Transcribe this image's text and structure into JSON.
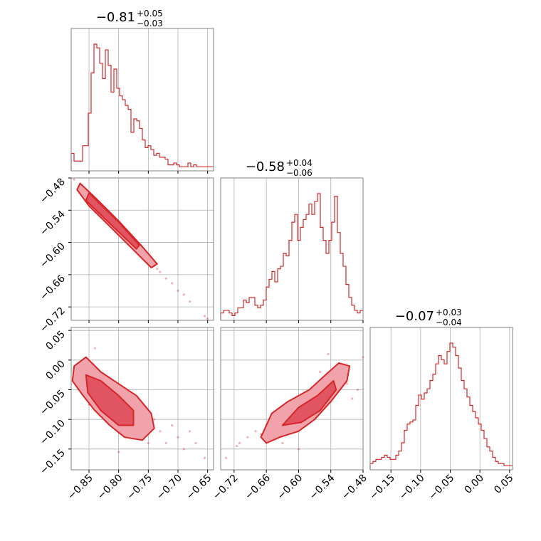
{
  "colors": {
    "line": "#d62728",
    "fill_dark": "#e05561",
    "fill_light": "#f0a3ab",
    "grid": "#b0b0b0",
    "frame": "#808080"
  },
  "chart_data": {
    "type": "corner",
    "parameters": [
      {
        "title_value": "−0.81",
        "err_plus": "+0.05",
        "err_minus": "−0.03",
        "median": -0.81,
        "plus": 0.05,
        "minus": 0.03,
        "range": [
          -0.88,
          -0.64
        ]
      },
      {
        "title_value": "−0.58",
        "err_plus": "+0.04",
        "err_minus": "−0.06",
        "median": -0.58,
        "plus": 0.04,
        "minus": 0.06,
        "range": [
          -0.745,
          -0.48
        ]
      },
      {
        "title_value": "−0.07",
        "err_plus": "+0.03",
        "err_minus": "−0.04",
        "median": -0.07,
        "plus": 0.03,
        "minus": 0.04,
        "range": [
          -0.185,
          0.055
        ]
      }
    ],
    "ticks": {
      "p0": [
        {
          "v": -0.85,
          "label": "−0.85"
        },
        {
          "v": -0.8,
          "label": "−0.80"
        },
        {
          "v": -0.75,
          "label": "−0.75"
        },
        {
          "v": -0.7,
          "label": "−0.70"
        },
        {
          "v": -0.65,
          "label": "−0.65"
        }
      ],
      "p1": [
        {
          "v": -0.72,
          "label": "−0.72"
        },
        {
          "v": -0.66,
          "label": "−0.66"
        },
        {
          "v": -0.6,
          "label": "−0.60"
        },
        {
          "v": -0.54,
          "label": "−0.54"
        },
        {
          "v": -0.48,
          "label": "−0.48"
        }
      ],
      "p2": [
        {
          "v": -0.15,
          "label": "−0.15"
        },
        {
          "v": -0.1,
          "label": "−0.10"
        },
        {
          "v": -0.05,
          "label": "−0.05"
        },
        {
          "v": 0.0,
          "label": "0.00"
        },
        {
          "v": 0.05,
          "label": "0.05"
        }
      ]
    },
    "histograms": {
      "p0": [
        8,
        4,
        4,
        4,
        12,
        12,
        29,
        50,
        65,
        63,
        55,
        47,
        62,
        54,
        40,
        52,
        42,
        38,
        36,
        33,
        31,
        19,
        26,
        25,
        21,
        15,
        11,
        12,
        10,
        7,
        8,
        6,
        6,
        5,
        2,
        2,
        3,
        2,
        1,
        1,
        1,
        3,
        1,
        2,
        1,
        1,
        1,
        1,
        1,
        1
      ],
      "p1": [
        2,
        3,
        3,
        2,
        1,
        2,
        4,
        4,
        7,
        6,
        8,
        8,
        5,
        4,
        5,
        7,
        12,
        15,
        18,
        14,
        19,
        20,
        25,
        24,
        30,
        37,
        40,
        30,
        35,
        38,
        40,
        44,
        40,
        45,
        48,
        35,
        30,
        25,
        30,
        37,
        47,
        33,
        25,
        20,
        13,
        8,
        5,
        3,
        2,
        3
      ],
      "p2": [
        2,
        3,
        4,
        4,
        5,
        6,
        5,
        4,
        4,
        6,
        8,
        12,
        18,
        21,
        22,
        23,
        30,
        35,
        33,
        36,
        38,
        42,
        45,
        50,
        54,
        52,
        50,
        56,
        60,
        58,
        54,
        48,
        42,
        38,
        34,
        30,
        27,
        24,
        21,
        18,
        14,
        10,
        8,
        5,
        3,
        2,
        2,
        1,
        1,
        1
      ]
    },
    "pairs": [
      {
        "x": "p0",
        "y": "p1",
        "samples": [
          [
            -0.875,
            -0.483
          ],
          [
            -0.86,
            -0.497
          ],
          [
            -0.855,
            -0.507
          ],
          [
            -0.85,
            -0.515
          ],
          [
            -0.845,
            -0.522
          ],
          [
            -0.84,
            -0.527
          ],
          [
            -0.835,
            -0.534
          ],
          [
            -0.83,
            -0.538
          ],
          [
            -0.825,
            -0.546
          ],
          [
            -0.82,
            -0.551
          ],
          [
            -0.815,
            -0.556
          ],
          [
            -0.81,
            -0.562
          ],
          [
            -0.805,
            -0.567
          ],
          [
            -0.8,
            -0.575
          ],
          [
            -0.795,
            -0.58
          ],
          [
            -0.79,
            -0.585
          ],
          [
            -0.785,
            -0.591
          ],
          [
            -0.78,
            -0.597
          ],
          [
            -0.775,
            -0.603
          ],
          [
            -0.77,
            -0.609
          ],
          [
            -0.765,
            -0.614
          ],
          [
            -0.76,
            -0.62
          ],
          [
            -0.755,
            -0.627
          ],
          [
            -0.75,
            -0.632
          ],
          [
            -0.745,
            -0.636
          ],
          [
            -0.74,
            -0.644
          ],
          [
            -0.735,
            -0.649
          ],
          [
            -0.73,
            -0.655
          ],
          [
            -0.72,
            -0.667
          ],
          [
            -0.71,
            -0.676
          ],
          [
            -0.7,
            -0.69
          ],
          [
            -0.69,
            -0.697
          ],
          [
            -0.68,
            -0.71
          ],
          [
            -0.655,
            -0.737
          ],
          [
            -0.65,
            -0.742
          ]
        ],
        "contour_outer": [
          [
            -0.865,
            -0.49
          ],
          [
            -0.84,
            -0.516
          ],
          [
            -0.8,
            -0.56
          ],
          [
            -0.76,
            -0.608
          ],
          [
            -0.735,
            -0.64
          ],
          [
            -0.745,
            -0.647
          ],
          [
            -0.775,
            -0.614
          ],
          [
            -0.815,
            -0.57
          ],
          [
            -0.85,
            -0.532
          ],
          [
            -0.87,
            -0.502
          ]
        ],
        "contour_inner": [
          [
            -0.85,
            -0.508
          ],
          [
            -0.8,
            -0.562
          ],
          [
            -0.765,
            -0.605
          ],
          [
            -0.77,
            -0.612
          ],
          [
            -0.81,
            -0.57
          ],
          [
            -0.855,
            -0.522
          ]
        ]
      },
      {
        "x": "p0",
        "y": "p2",
        "samples": [
          [
            -0.86,
            -0.02
          ],
          [
            -0.85,
            -0.03
          ],
          [
            -0.84,
            -0.05
          ],
          [
            -0.835,
            -0.06
          ],
          [
            -0.83,
            -0.04
          ],
          [
            -0.825,
            -0.07
          ],
          [
            -0.82,
            -0.08
          ],
          [
            -0.815,
            -0.05
          ],
          [
            -0.81,
            -0.09
          ],
          [
            -0.805,
            -0.1
          ],
          [
            -0.8,
            -0.07
          ],
          [
            -0.795,
            -0.11
          ],
          [
            -0.79,
            -0.09
          ],
          [
            -0.785,
            -0.12
          ],
          [
            -0.78,
            -0.08
          ],
          [
            -0.775,
            -0.1
          ],
          [
            -0.77,
            -0.13
          ],
          [
            -0.765,
            -0.11
          ],
          [
            -0.76,
            -0.09
          ],
          [
            -0.755,
            -0.12
          ],
          [
            -0.75,
            -0.14
          ],
          [
            -0.74,
            -0.1
          ],
          [
            -0.73,
            -0.12
          ],
          [
            -0.72,
            -0.14
          ],
          [
            -0.71,
            -0.11
          ],
          [
            -0.7,
            -0.13
          ],
          [
            -0.69,
            -0.15
          ],
          [
            -0.68,
            -0.12
          ],
          [
            -0.67,
            -0.14
          ],
          [
            -0.655,
            -0.165
          ],
          [
            -0.84,
            0.02
          ],
          [
            -0.85,
            -0.075
          ],
          [
            -0.8,
            -0.155
          ],
          [
            -0.76,
            -0.13
          ]
        ],
        "contour_outer": [
          [
            -0.875,
            -0.01
          ],
          [
            -0.855,
            0.005
          ],
          [
            -0.83,
            -0.02
          ],
          [
            -0.8,
            -0.04
          ],
          [
            -0.77,
            -0.06
          ],
          [
            -0.745,
            -0.09
          ],
          [
            -0.74,
            -0.115
          ],
          [
            -0.76,
            -0.135
          ],
          [
            -0.79,
            -0.13
          ],
          [
            -0.815,
            -0.11
          ],
          [
            -0.84,
            -0.085
          ],
          [
            -0.86,
            -0.06
          ],
          [
            -0.878,
            -0.035
          ]
        ],
        "contour_inner": [
          [
            -0.855,
            -0.025
          ],
          [
            -0.83,
            -0.035
          ],
          [
            -0.8,
            -0.06
          ],
          [
            -0.775,
            -0.085
          ],
          [
            -0.775,
            -0.11
          ],
          [
            -0.8,
            -0.11
          ],
          [
            -0.83,
            -0.085
          ],
          [
            -0.852,
            -0.055
          ]
        ]
      },
      {
        "x": "p1",
        "y": "p2",
        "samples": [
          [
            -0.735,
            -0.165
          ],
          [
            -0.715,
            -0.145
          ],
          [
            -0.71,
            -0.14
          ],
          [
            -0.695,
            -0.13
          ],
          [
            -0.68,
            -0.12
          ],
          [
            -0.67,
            -0.125
          ],
          [
            -0.66,
            -0.11
          ],
          [
            -0.65,
            -0.1
          ],
          [
            -0.64,
            -0.115
          ],
          [
            -0.63,
            -0.09
          ],
          [
            -0.62,
            -0.1
          ],
          [
            -0.61,
            -0.08
          ],
          [
            -0.6,
            -0.09
          ],
          [
            -0.59,
            -0.07
          ],
          [
            -0.58,
            -0.08
          ],
          [
            -0.57,
            -0.06
          ],
          [
            -0.56,
            -0.07
          ],
          [
            -0.55,
            -0.05
          ],
          [
            -0.54,
            -0.04
          ],
          [
            -0.53,
            -0.03
          ],
          [
            -0.52,
            -0.02
          ],
          [
            -0.51,
            -0.04
          ],
          [
            -0.5,
            -0.065
          ],
          [
            -0.49,
            -0.05
          ],
          [
            -0.48,
            0.005
          ],
          [
            -0.56,
            -0.02
          ],
          [
            -0.545,
            0.01
          ],
          [
            -0.6,
            -0.15
          ],
          [
            -0.63,
            -0.14
          ],
          [
            -0.52,
            -0.035
          ]
        ],
        "contour_outer": [
          [
            -0.67,
            -0.13
          ],
          [
            -0.65,
            -0.09
          ],
          [
            -0.62,
            -0.07
          ],
          [
            -0.58,
            -0.05
          ],
          [
            -0.55,
            -0.025
          ],
          [
            -0.525,
            -0.005
          ],
          [
            -0.505,
            -0.01
          ],
          [
            -0.51,
            -0.035
          ],
          [
            -0.54,
            -0.07
          ],
          [
            -0.57,
            -0.1
          ],
          [
            -0.6,
            -0.12
          ],
          [
            -0.635,
            -0.13
          ],
          [
            -0.66,
            -0.14
          ]
        ],
        "contour_inner": [
          [
            -0.63,
            -0.11
          ],
          [
            -0.6,
            -0.08
          ],
          [
            -0.565,
            -0.06
          ],
          [
            -0.535,
            -0.035
          ],
          [
            -0.53,
            -0.05
          ],
          [
            -0.56,
            -0.085
          ],
          [
            -0.595,
            -0.105
          ]
        ]
      }
    ]
  }
}
